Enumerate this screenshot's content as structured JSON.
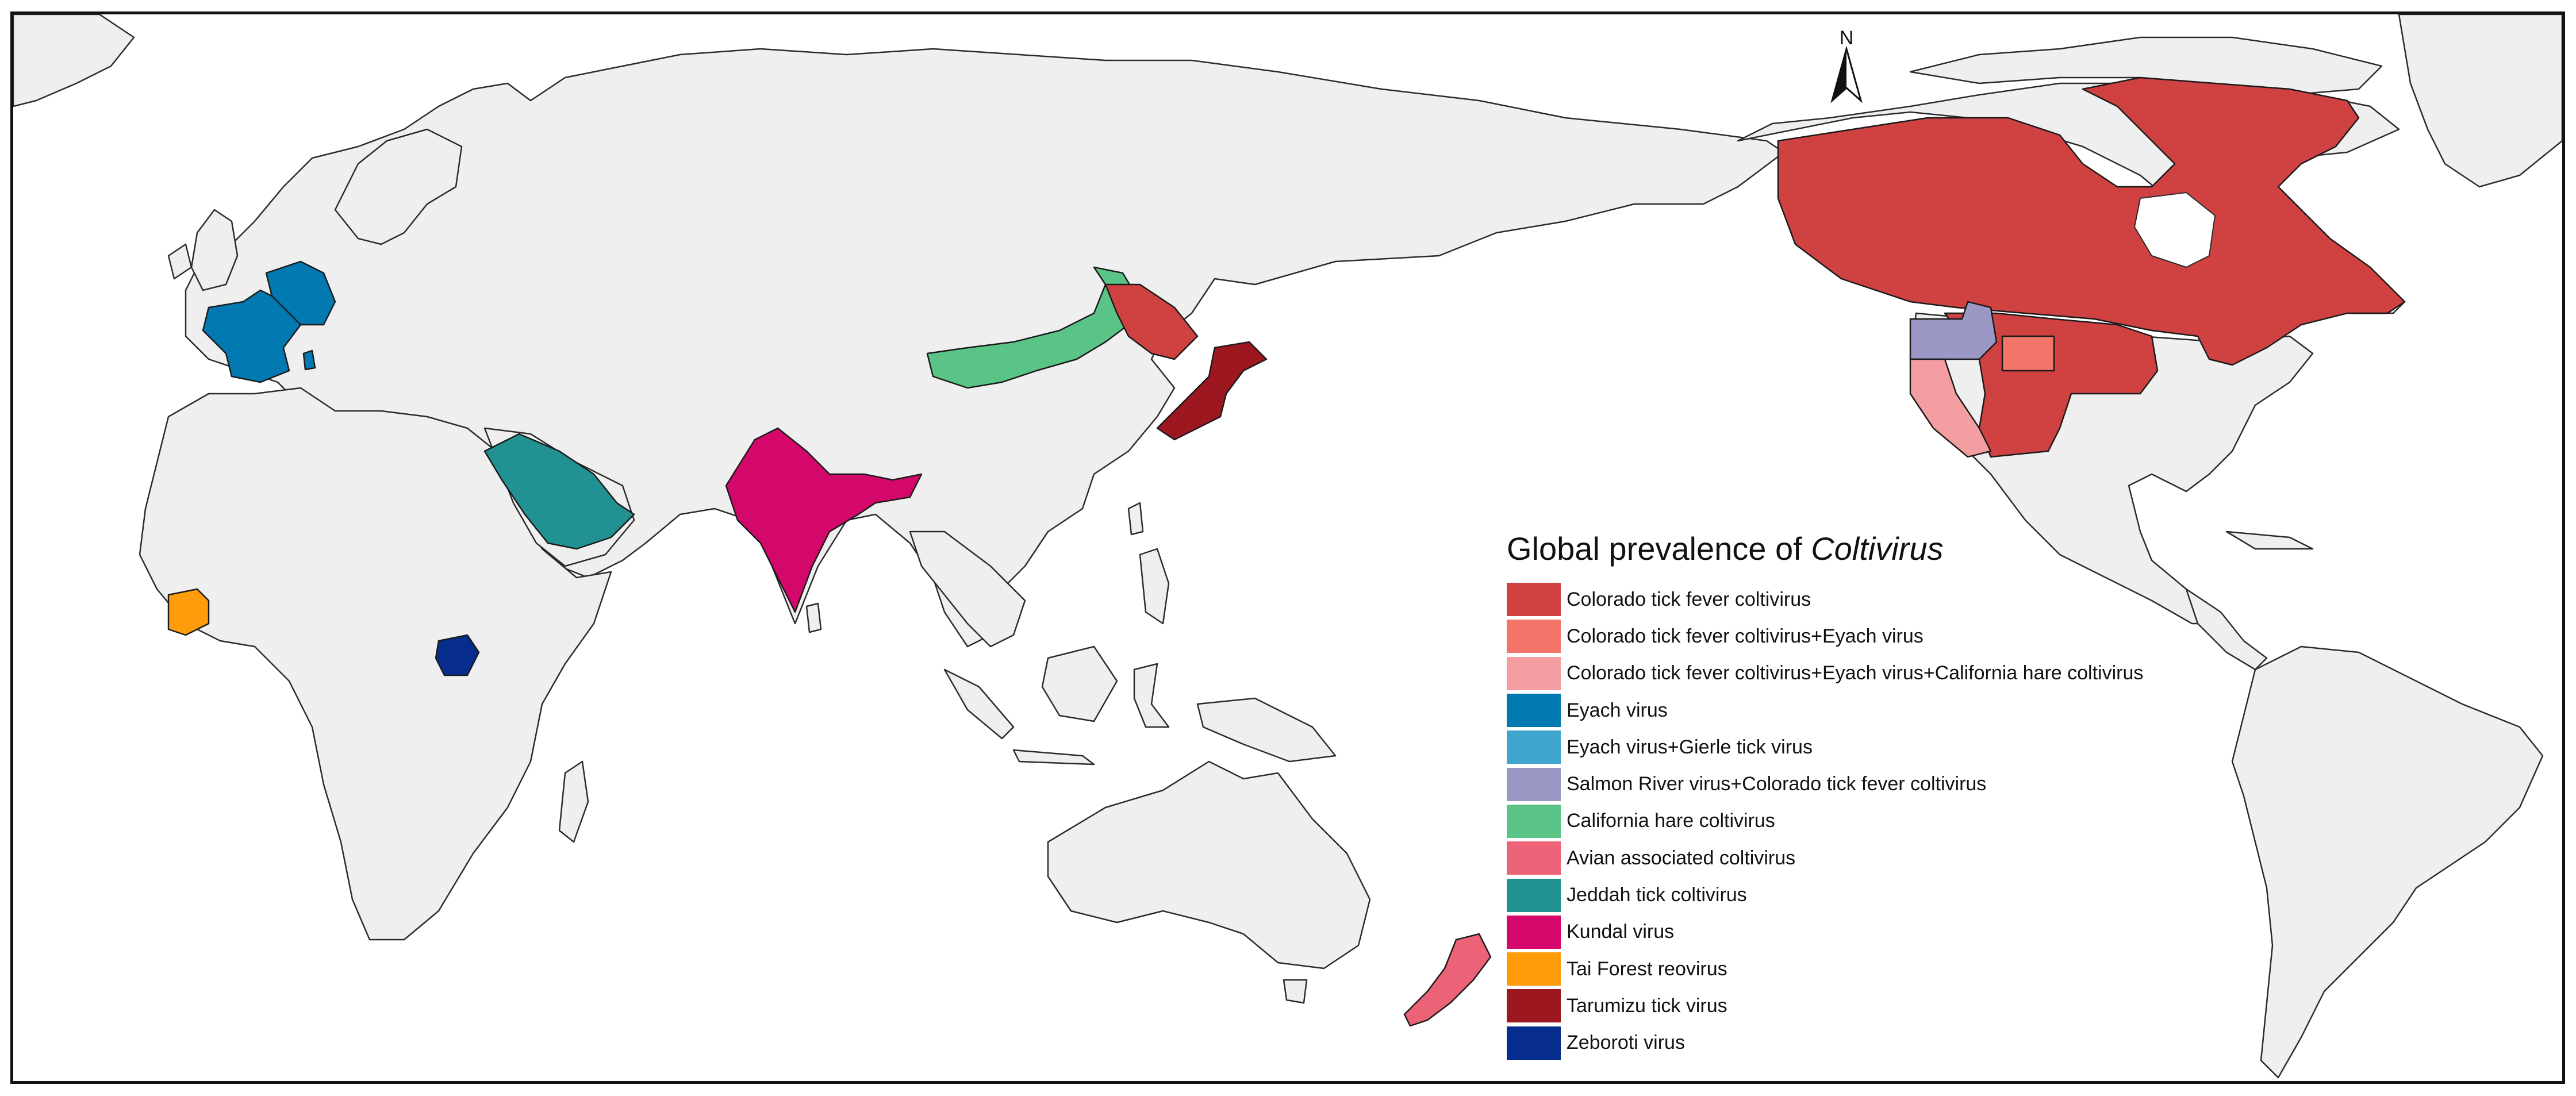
{
  "north_arrow": {
    "label": "N"
  },
  "legend": {
    "title": "Global prevalence of ",
    "title_italic": "Coltivirus",
    "items": [
      {
        "label": "Colorado tick fever coltivirus",
        "color": "#d04141"
      },
      {
        "label": "Colorado tick fever coltivirus+Eyach virus",
        "color": "#f3756a"
      },
      {
        "label": "Colorado tick fever coltivirus+Eyach virus+California hare coltivirus",
        "color": "#f59ea1"
      },
      {
        "label": "Eyach virus",
        "color": "#0379b2"
      },
      {
        "label": "Eyach virus+Gierle tick virus",
        "color": "#3fa5cf"
      },
      {
        "label": "Salmon River virus+Colorado tick fever coltivirus",
        "color": "#9b98c6"
      },
      {
        "label": "California hare coltivirus",
        "color": "#5ac487"
      },
      {
        "label": "Avian associated coltivirus",
        "color": "#ec6277"
      },
      {
        "label": "Jeddah tick coltivirus",
        "color": "#219192"
      },
      {
        "label": "Kundal virus",
        "color": "#d4076a"
      },
      {
        "label": "Tai Forest reovirus",
        "color": "#fe9c0c"
      },
      {
        "label": "Tarumizu tick virus",
        "color": "#9c1720"
      },
      {
        "label": "Zeboroti virus",
        "color": "#062d8e"
      }
    ]
  }
}
